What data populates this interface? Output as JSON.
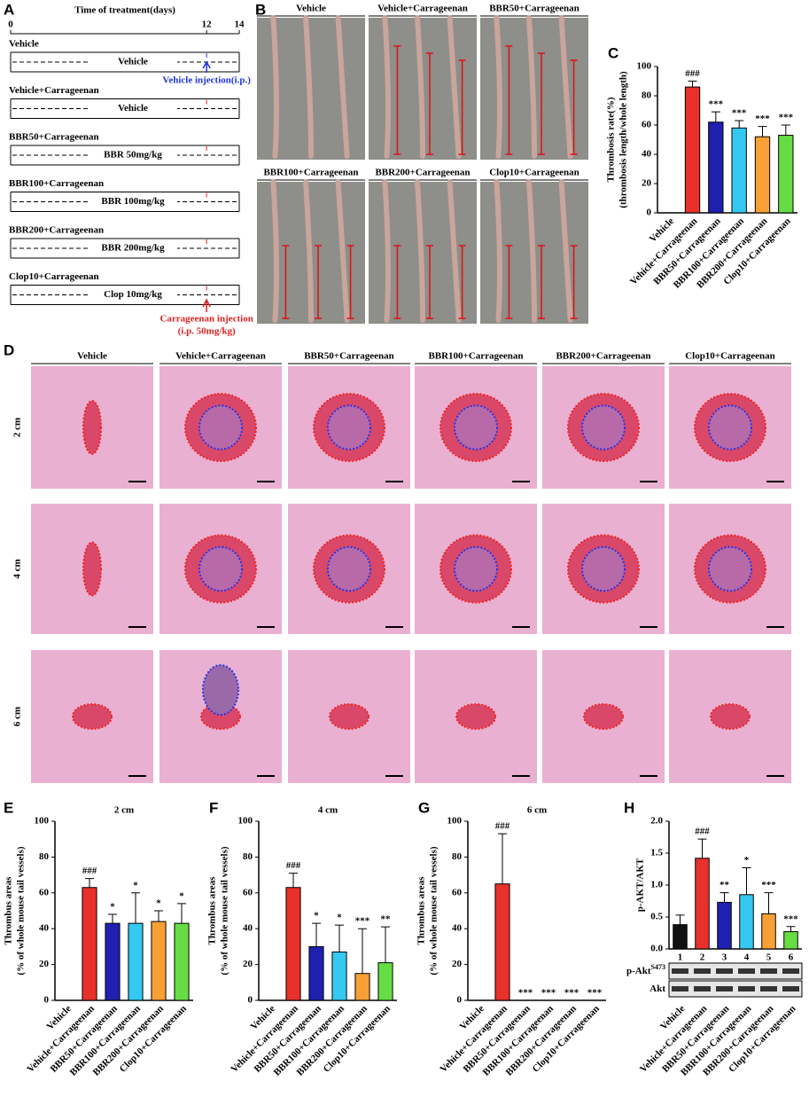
{
  "timeline": {
    "label": "A",
    "title": "Time of treatment(days)",
    "span": [
      0,
      14
    ],
    "days": [
      0,
      12,
      14
    ],
    "groups": [
      {
        "name": "Vehicle",
        "treatment": "Vehicle"
      },
      {
        "name": "Vehicle+Carrageenan",
        "treatment": "Vehicle"
      },
      {
        "name": "BBR50+Carrageenan",
        "treatment": "BBR 50mg/kg"
      },
      {
        "name": "BBR100+Carrageenan",
        "treatment": "BBR 100mg/kg"
      },
      {
        "name": "BBR200+Carrageenan",
        "treatment": "BBR 200mg/kg"
      },
      {
        "name": "Clop10+Carrageenan",
        "treatment": "Clop 10mg/kg"
      }
    ],
    "vehicle_note": "Vehicle injection(i.p.)",
    "carrageenan_note": [
      "Carrageenan injection",
      "(i.p. 50mg/kg)"
    ]
  },
  "photos": {
    "label": "B",
    "groups": [
      "Vehicle",
      "Vehicle+Carrageenan",
      "BBR50+Carrageenan",
      "BBR100+Carrageenan",
      "BBR200+Carrageenan",
      "Clop10+Carrageenan"
    ]
  },
  "histology": {
    "label": "D",
    "columns": [
      "Vehicle",
      "Vehicle+Carrageenan",
      "BBR50+Carrageenan",
      "BBR100+Carrageenan",
      "BBR200+Carrageenan",
      "Clop10+Carrageenan"
    ],
    "rows": [
      "2 cm",
      "4 cm",
      "6 cm"
    ]
  },
  "chart_data": [
    {
      "type": "bar",
      "panel_label": "C",
      "y_label": [
        "Thrombosis rate(%)",
        "(thrombosis length/whole length)"
      ],
      "categories": [
        "Vehicle",
        "Vehicle+Carrageenan",
        "BBR50+Carrageenan",
        "BBR100+Carrageenan",
        "BBR200+Carrageenan",
        "Clop10+Carrageenan"
      ],
      "values": [
        0,
        86,
        62,
        58,
        52,
        53
      ],
      "errors": [
        0,
        4,
        7,
        5,
        7,
        7
      ],
      "sig_labels": [
        null,
        "###",
        "***",
        "***",
        "***",
        "***"
      ],
      "colors": [
        "#111111",
        "#e8312a",
        "#1f1fb0",
        "#35c8f0",
        "#f7a035",
        "#66dd44"
      ],
      "ylim": [
        0,
        100
      ],
      "yticks": [
        0,
        20,
        40,
        60,
        80,
        100
      ]
    },
    {
      "type": "bar",
      "panel_label": "E",
      "title": "2 cm",
      "y_label": [
        "Thrombus areas",
        "(% of whole mouse tail vessels)"
      ],
      "categories": [
        "Vehicle",
        "Vehicle+Carrageenan",
        "BBR50+Carrageenan",
        "BBR100+Carrageenan",
        "BBR200+Carrageenan",
        "Clop10+Carrageenan"
      ],
      "values": [
        0,
        63,
        43,
        43,
        44,
        43
      ],
      "errors": [
        0,
        5,
        5,
        17,
        6,
        11
      ],
      "sig_labels": [
        null,
        "###",
        "*",
        "*",
        "*",
        "*"
      ],
      "colors": [
        "#111111",
        "#e8312a",
        "#1f1fb0",
        "#35c8f0",
        "#f7a035",
        "#66dd44"
      ],
      "ylim": [
        0,
        100
      ],
      "yticks": [
        0,
        20,
        40,
        60,
        80,
        100
      ]
    },
    {
      "type": "bar",
      "panel_label": "F",
      "title": "4 cm",
      "y_label": [
        "Thrombus areas",
        "(% of whole mouse tail vessels)"
      ],
      "categories": [
        "Vehicle",
        "Vehicle+Carrageenan",
        "BBR50+Carrageenan",
        "BBR100+Carrageenan",
        "BBR200+Carrageenan",
        "Clop10+Carrageenan"
      ],
      "values": [
        0,
        63,
        30,
        27,
        15,
        21
      ],
      "errors": [
        0,
        8,
        13,
        15,
        25,
        20
      ],
      "sig_labels": [
        null,
        "###",
        "*",
        "*",
        "***",
        "**"
      ],
      "colors": [
        "#111111",
        "#e8312a",
        "#1f1fb0",
        "#35c8f0",
        "#f7a035",
        "#66dd44"
      ],
      "ylim": [
        0,
        100
      ],
      "yticks": [
        0,
        20,
        40,
        60,
        80,
        100
      ]
    },
    {
      "type": "bar",
      "panel_label": "G",
      "title": "6 cm",
      "y_label": [
        "Thrombus areas",
        "(% of whole mouse tail vessels)"
      ],
      "categories": [
        "Vehicle",
        "Vehicle+Carrageenan",
        "BBR50+Carrageenan",
        "BBR100+Carrageenan",
        "BBR200+Carrageenan",
        "Clop10+Carrageenan"
      ],
      "values": [
        0,
        65,
        0,
        0,
        0,
        0
      ],
      "errors": [
        0,
        28,
        0,
        0,
        0,
        0
      ],
      "sig_labels": [
        null,
        "###",
        "***",
        "***",
        "***",
        "***"
      ],
      "colors": [
        "#111111",
        "#e8312a",
        "#1f1fb0",
        "#35c8f0",
        "#f7a035",
        "#66dd44"
      ],
      "ylim": [
        0,
        100
      ],
      "yticks": [
        0,
        20,
        40,
        60,
        80,
        100
      ]
    },
    {
      "type": "bar",
      "panel_label": "H",
      "y_label": [
        "p-AKT/AKT"
      ],
      "categories": [
        "Vehicle",
        "Vehicle+Carrageenan",
        "BBR50+Carrageenan",
        "BBR100+Carrageenan",
        "BBR200+Carrageenan",
        "Clop10+Carrageenan"
      ],
      "lane_numbers": [
        "1",
        "2",
        "3",
        "4",
        "5",
        "6"
      ],
      "blot_rows": [
        {
          "label": "p-Akt",
          "sup": "S473"
        },
        {
          "label": "Akt"
        }
      ],
      "values": [
        0.38,
        1.42,
        0.73,
        0.85,
        0.55,
        0.27
      ],
      "errors": [
        0.15,
        0.3,
        0.15,
        0.42,
        0.33,
        0.08
      ],
      "sig_labels": [
        null,
        "###",
        "**",
        "*",
        "***",
        "***"
      ],
      "colors": [
        "#111111",
        "#e8312a",
        "#1f1fb0",
        "#35c8f0",
        "#f7a035",
        "#66dd44"
      ],
      "ylim": [
        0,
        2
      ],
      "yticks": [
        {
          "value": 0,
          "label": "0.0"
        },
        {
          "value": 0.5,
          "label": "0.5"
        },
        {
          "value": 1,
          "label": "1.0"
        },
        {
          "value": 1.5,
          "label": "1.5"
        },
        {
          "value": 2,
          "label": "2.0"
        }
      ]
    }
  ]
}
